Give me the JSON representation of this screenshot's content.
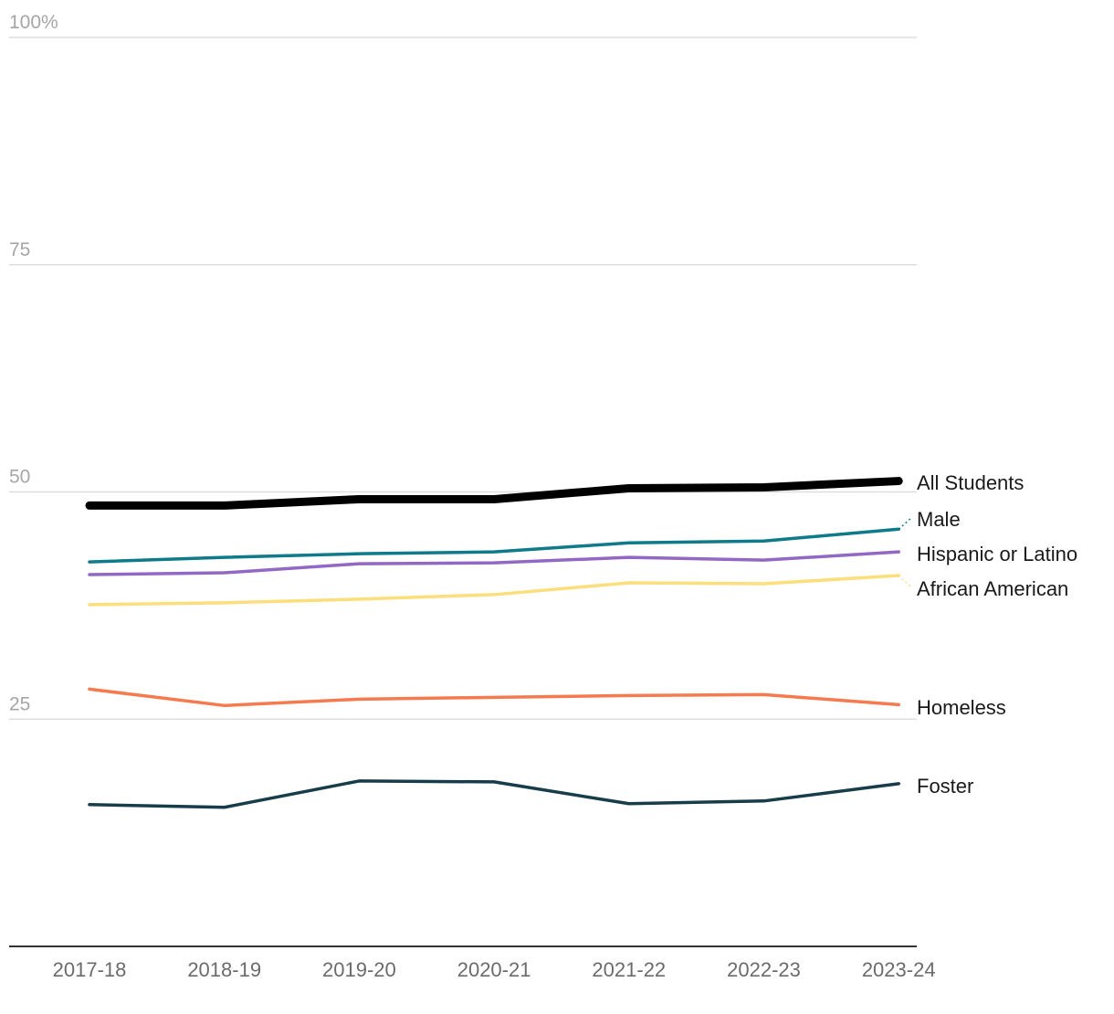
{
  "chart_data": {
    "type": "line",
    "title": "",
    "xlabel": "",
    "ylabel": "",
    "x": [
      "2017-18",
      "2018-19",
      "2019-20",
      "2020-21",
      "2021-22",
      "2022-23",
      "2023-24"
    ],
    "ylim": [
      0,
      100
    ],
    "yticks": [
      {
        "value": 100,
        "label": "100%"
      },
      {
        "value": 75,
        "label": "75"
      },
      {
        "value": 50,
        "label": "50"
      },
      {
        "value": 25,
        "label": "25"
      }
    ],
    "grid": true,
    "legend": "direct labels at line ends (right)",
    "series": [
      {
        "name": "All Students",
        "color": "#000000",
        "emphasis": true,
        "values": [
          48.5,
          48.5,
          49.2,
          49.2,
          50.4,
          50.5,
          51.2
        ]
      },
      {
        "name": "Male",
        "color": "#0e7a8a",
        "values": [
          42.3,
          42.8,
          43.2,
          43.4,
          44.4,
          44.6,
          45.9
        ]
      },
      {
        "name": "Hispanic or Latino",
        "color": "#9168c4",
        "values": [
          40.9,
          41.1,
          42.1,
          42.2,
          42.8,
          42.5,
          43.4
        ]
      },
      {
        "name": "African American",
        "color": "#fcde7b",
        "values": [
          37.6,
          37.8,
          38.2,
          38.7,
          40.0,
          39.9,
          40.8
        ]
      },
      {
        "name": "Homeless",
        "color": "#f57a4e",
        "values": [
          28.3,
          26.5,
          27.2,
          27.4,
          27.6,
          27.7,
          26.6
        ]
      },
      {
        "name": "Foster",
        "color": "#173d4a",
        "values": [
          15.6,
          15.3,
          18.2,
          18.1,
          15.7,
          16.0,
          17.9
        ]
      }
    ]
  }
}
